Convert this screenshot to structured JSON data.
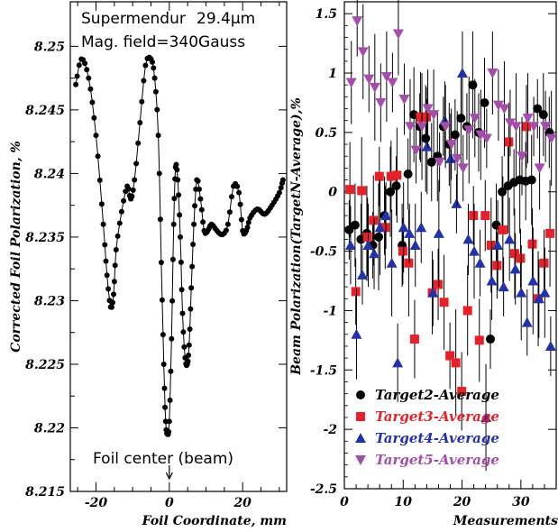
{
  "chart_data": [
    {
      "type": "scatter",
      "xlabel": "Foil Coordinate, mm",
      "ylabel": "Corrected Foil Polarization, %",
      "xlim": [
        -27,
        32
      ],
      "ylim": [
        8.215,
        8.2535
      ],
      "xticks": [
        "-20",
        "0",
        "20"
      ],
      "xtick_values": [
        -20,
        0,
        20
      ],
      "yticks": [
        "8.215",
        "8.22",
        "8.225",
        "8.23",
        "8.235",
        "8.24",
        "8.245",
        "8.25"
      ],
      "ytick_values": [
        8.215,
        8.22,
        8.225,
        8.23,
        8.235,
        8.24,
        8.245,
        8.25
      ],
      "annotations": {
        "material": "Supermendur",
        "thickness": "29.4μm",
        "field": "Mag. field=340Gauss",
        "center": "Foil center (beam)"
      },
      "series": [
        {
          "color": "#000000",
          "x": [
            -25.5,
            -24,
            -22,
            -20,
            -18,
            -17,
            -16,
            -15.2,
            -14.5,
            -13,
            -11.5,
            -10.5,
            -9.5,
            -8,
            -6.5,
            -5,
            -4,
            -3,
            -2.2,
            -1.5,
            -1,
            -0.5,
            0,
            0.6,
            1.2,
            1.7,
            2.3,
            3,
            3.6,
            4.3,
            4.9,
            5.4,
            6,
            6.7,
            7.5,
            8.5,
            9.5,
            10.5,
            11.5,
            13,
            14.5,
            16,
            17.5,
            19,
            20,
            21,
            22,
            24,
            26,
            28,
            30,
            31
          ],
          "y": [
            8.247,
            8.249,
            8.2475,
            8.243,
            8.236,
            8.232,
            8.2295,
            8.2305,
            8.234,
            8.237,
            8.239,
            8.238,
            8.2395,
            8.244,
            8.2485,
            8.249,
            8.2475,
            8.243,
            8.233,
            8.225,
            8.2205,
            8.2195,
            8.2205,
            8.227,
            8.236,
            8.2405,
            8.2395,
            8.235,
            8.229,
            8.2255,
            8.225,
            8.2265,
            8.231,
            8.236,
            8.2395,
            8.238,
            8.2355,
            8.2355,
            8.236,
            8.2355,
            8.2352,
            8.236,
            8.239,
            8.2385,
            8.2355,
            8.2355,
            8.2365,
            8.2372,
            8.2368,
            8.2375,
            8.2385,
            8.2395
          ]
        }
      ]
    },
    {
      "type": "scatter",
      "xlabel": "Measurements",
      "ylabel": "Beam Polarization(TargetN-Average),%",
      "xlim": [
        0,
        36
      ],
      "ylim": [
        -2.5,
        1.6
      ],
      "xticks": [
        "0",
        "10",
        "20",
        "30"
      ],
      "xtick_values": [
        0,
        10,
        20,
        30
      ],
      "yticks": [
        "-2.5",
        "-2",
        "-1.5",
        "-1",
        "-0.5",
        "0",
        "0.5",
        "1",
        "1.5"
      ],
      "ytick_values": [
        -2.5,
        -2,
        -1.5,
        -1,
        -0.5,
        0,
        0.5,
        1,
        1.5
      ],
      "legend_position": "bottom-left",
      "series": [
        {
          "name": "Target2-Average",
          "color": "#000000",
          "marker": "circle",
          "x": [
            1,
            2,
            3,
            4,
            5,
            6,
            7,
            8,
            9,
            10,
            11,
            12,
            13,
            14,
            15,
            16,
            17,
            18,
            19,
            20,
            21,
            22,
            23,
            24,
            25,
            26,
            27,
            28,
            29,
            30,
            31,
            32,
            33,
            34,
            35
          ],
          "y": [
            -0.32,
            -0.28,
            -0.4,
            -0.35,
            -0.45,
            -0.38,
            -0.2,
            0.0,
            0.05,
            -0.45,
            0.15,
            0.65,
            0.55,
            0.45,
            0.25,
            0.3,
            0.55,
            0.4,
            0.48,
            0.62,
            0.55,
            0.9,
            0.5,
            0.75,
            -1.24,
            -0.28,
            0.0,
            0.05,
            0.08,
            0.1,
            0.09,
            0.1,
            0.7,
            0.65,
            0.5
          ]
        },
        {
          "name": "Target3-Average",
          "color": "#e8202a",
          "marker": "square",
          "x": [
            1,
            2,
            3,
            4,
            5,
            6,
            7,
            8,
            9,
            10,
            11,
            12,
            13,
            14,
            15,
            16,
            17,
            18,
            19,
            20,
            21,
            22,
            23,
            24,
            25,
            26,
            27,
            28,
            29,
            30,
            31,
            32,
            33,
            34,
            35
          ],
          "y": [
            0.02,
            -0.84,
            0.01,
            -0.38,
            -0.24,
            0.13,
            -0.3,
            0.13,
            0.14,
            -0.5,
            -0.6,
            -1.24,
            0.63,
            0.63,
            -0.85,
            -0.78,
            -0.93,
            -1.38,
            -1.44,
            -1.68,
            -1.0,
            -0.2,
            -1.25,
            -0.2,
            -0.45,
            -0.62,
            -0.32,
            0.42,
            -0.52,
            -0.56,
            0.55,
            -0.44,
            -0.9,
            -0.6,
            -0.35
          ]
        },
        {
          "name": "Target4-Average",
          "color": "#2233aa",
          "marker": "triangle-up",
          "x": [
            1,
            2,
            3,
            4,
            5,
            6,
            7,
            8,
            9,
            10,
            11,
            12,
            13,
            14,
            15,
            16,
            17,
            18,
            19,
            20,
            21,
            22,
            23,
            24,
            25,
            26,
            27,
            28,
            29,
            30,
            31,
            32,
            33,
            34,
            35
          ],
          "y": [
            -0.45,
            -1.2,
            -0.7,
            -0.45,
            -0.52,
            -0.3,
            -0.2,
            -0.6,
            -1.44,
            -0.3,
            -0.35,
            -0.45,
            -0.3,
            0.38,
            -0.85,
            -0.35,
            0.6,
            0.28,
            -0.1,
            1.0,
            -0.4,
            -0.5,
            -0.6,
            -1.9,
            -0.75,
            -0.45,
            -0.8,
            -0.4,
            -0.65,
            -0.85,
            -1.1,
            -0.75,
            -0.9,
            -0.85,
            -1.3
          ]
        },
        {
          "name": "Target5-Average",
          "color": "#a44dab",
          "marker": "triangle-down",
          "x": [
            1,
            2,
            3,
            4,
            5,
            6,
            7,
            8,
            9,
            10,
            11,
            12,
            13,
            14,
            15,
            16,
            17,
            18,
            19,
            20,
            21,
            22,
            23,
            24,
            25,
            26,
            27,
            28,
            29,
            30,
            31,
            32,
            33,
            34,
            35
          ],
          "y": [
            0.92,
            1.44,
            1.18,
            0.95,
            0.88,
            0.75,
            0.97,
            0.92,
            1.33,
            0.78,
            0.55,
            0.35,
            0.55,
            0.7,
            0.65,
            0.25,
            0.55,
            0.4,
            0.28,
            0.2,
            0.52,
            0.62,
            0.48,
            0.45,
            1.0,
            0.73,
            0.7,
            0.58,
            0.55,
            0.3,
            0.62,
            0.55,
            0.2,
            0.55,
            0.45
          ]
        }
      ]
    }
  ]
}
